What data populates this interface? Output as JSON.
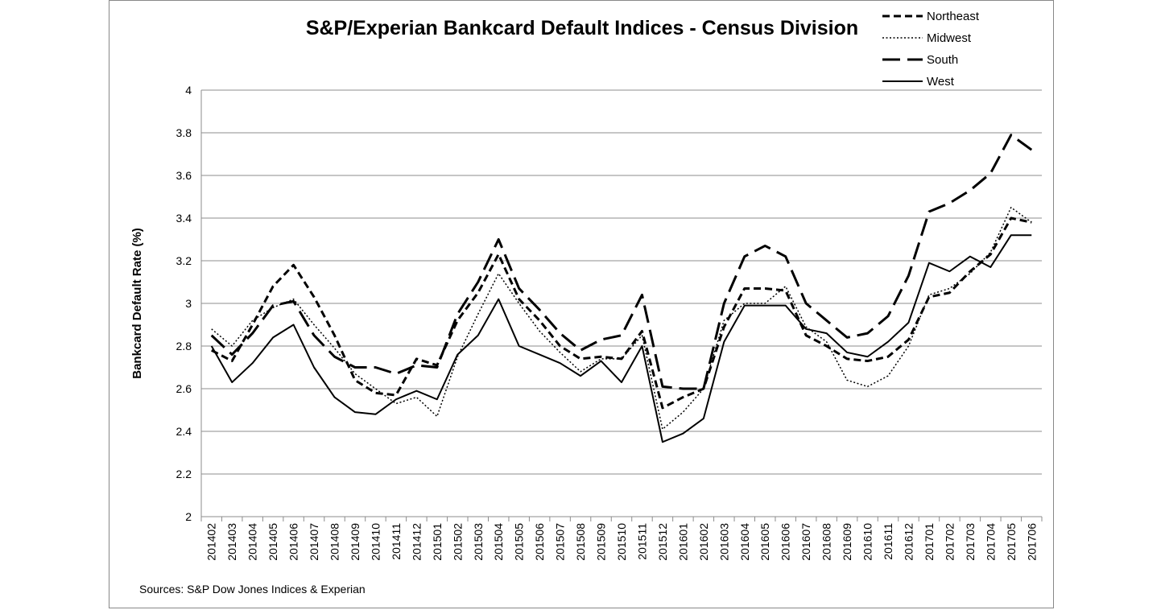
{
  "chart_data": {
    "type": "line",
    "title": "S&P/Experian Bankcard Default Indices - Census Division",
    "xlabel": "",
    "ylabel": "Bankcard Default Rate (%)",
    "ylim": [
      2,
      4
    ],
    "yticks": [
      "2",
      "2.2",
      "2.4",
      "2.6",
      "2.8",
      "3",
      "3.2",
      "3.4",
      "3.6",
      "3.8",
      "4"
    ],
    "grid": "horizontal",
    "legend_position": "top-right",
    "source": "Sources: S&P Dow Jones Indices & Experian",
    "x": [
      "201402",
      "201403",
      "201404",
      "201405",
      "201406",
      "201407",
      "201408",
      "201409",
      "201410",
      "201411",
      "201412",
      "201501",
      "201502",
      "201503",
      "201504",
      "201505",
      "201506",
      "201507",
      "201508",
      "201509",
      "201510",
      "201511",
      "201512",
      "201601",
      "201602",
      "201603",
      "201604",
      "201605",
      "201606",
      "201607",
      "201608",
      "201609",
      "201610",
      "201611",
      "201612",
      "201701",
      "201702",
      "201703",
      "201704",
      "201705",
      "201706"
    ],
    "series": [
      {
        "name": "Northeast",
        "style": "short-dash",
        "color": "#000000",
        "values": [
          2.78,
          2.73,
          2.9,
          3.08,
          3.18,
          3.03,
          2.85,
          2.64,
          2.58,
          2.57,
          2.74,
          2.71,
          2.92,
          3.05,
          3.23,
          3.02,
          2.92,
          2.8,
          2.74,
          2.75,
          2.74,
          2.87,
          2.51,
          2.56,
          2.6,
          2.89,
          3.07,
          3.07,
          3.06,
          2.85,
          2.8,
          2.74,
          2.73,
          2.75,
          2.83,
          3.03,
          3.05,
          3.15,
          3.23,
          3.4,
          3.38
        ]
      },
      {
        "name": "Midwest",
        "style": "dotted",
        "color": "#000000",
        "values": [
          2.88,
          2.8,
          2.92,
          2.98,
          3.02,
          2.9,
          2.79,
          2.67,
          2.6,
          2.53,
          2.56,
          2.47,
          2.75,
          2.95,
          3.14,
          3.0,
          2.87,
          2.77,
          2.68,
          2.74,
          2.74,
          2.85,
          2.41,
          2.49,
          2.6,
          2.92,
          3.0,
          3.0,
          3.08,
          2.89,
          2.82,
          2.64,
          2.61,
          2.66,
          2.8,
          3.04,
          3.07,
          3.14,
          3.24,
          3.45,
          3.38
        ]
      },
      {
        "name": "South",
        "style": "long-dash",
        "color": "#000000",
        "values": [
          2.85,
          2.76,
          2.86,
          2.99,
          3.01,
          2.85,
          2.75,
          2.7,
          2.7,
          2.67,
          2.71,
          2.7,
          2.95,
          3.1,
          3.3,
          3.07,
          2.97,
          2.86,
          2.78,
          2.83,
          2.85,
          3.04,
          2.61,
          2.6,
          2.6,
          3.0,
          3.22,
          3.27,
          3.22,
          3.0,
          2.92,
          2.84,
          2.86,
          2.94,
          3.13,
          3.43,
          3.47,
          3.53,
          3.61,
          3.79,
          3.72
        ]
      },
      {
        "name": "West",
        "style": "solid",
        "color": "#000000",
        "values": [
          2.8,
          2.63,
          2.72,
          2.84,
          2.9,
          2.7,
          2.56,
          2.49,
          2.48,
          2.55,
          2.59,
          2.55,
          2.76,
          2.85,
          3.02,
          2.8,
          2.76,
          2.72,
          2.66,
          2.73,
          2.63,
          2.8,
          2.35,
          2.39,
          2.46,
          2.82,
          2.99,
          2.99,
          2.99,
          2.88,
          2.86,
          2.77,
          2.75,
          2.82,
          2.91,
          3.19,
          3.15,
          3.22,
          3.17,
          3.32,
          3.32
        ]
      }
    ]
  }
}
